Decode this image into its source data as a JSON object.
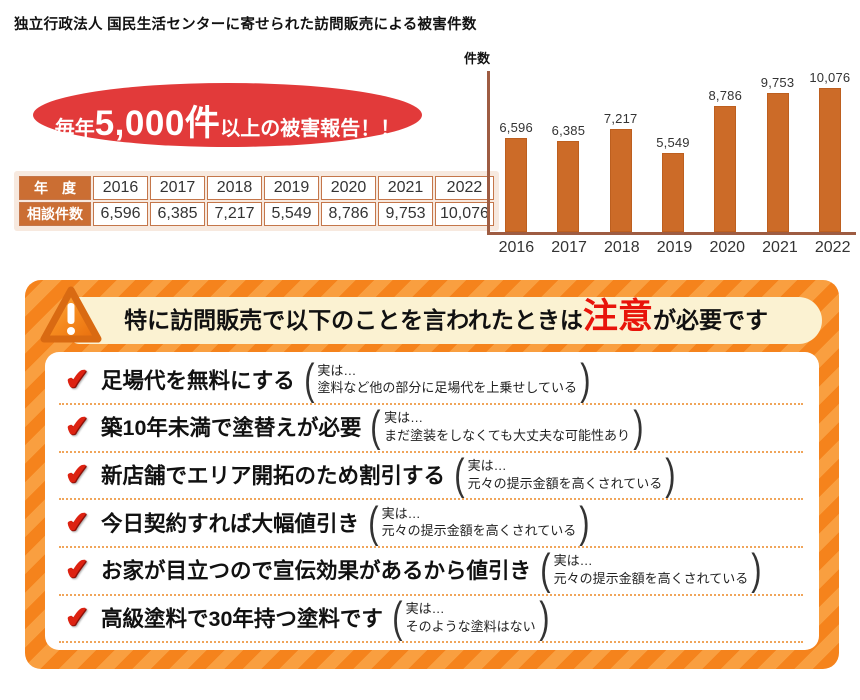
{
  "page": {
    "title": "独立行政法人 国民生活センターに寄せられた訪問販売による被害件数"
  },
  "badge": {
    "prefix": "毎年",
    "big": "5,000件",
    "suffix": "以上の被害報告！！",
    "bg_color": "#e23a3a"
  },
  "stats_table": {
    "row1_header": "年　度",
    "row2_header": "相談件数",
    "years": [
      "2016",
      "2017",
      "2018",
      "2019",
      "2020",
      "2021",
      "2022"
    ],
    "counts": [
      "6,596",
      "6,385",
      "7,217",
      "5,549",
      "8,786",
      "9,753",
      "10,076"
    ]
  },
  "chart_data": {
    "type": "bar",
    "title": "独立行政法人 国民生活センターに寄せられた訪問販売による被害件数",
    "ylabel": "件数",
    "categories": [
      "2016",
      "2017",
      "2018",
      "2019",
      "2020",
      "2021",
      "2022"
    ],
    "values": [
      6596,
      6385,
      7217,
      5549,
      8786,
      9753,
      10076
    ],
    "value_labels": [
      "6,596",
      "6,385",
      "7,217",
      "5,549",
      "8,786",
      "9,753",
      "10,076"
    ],
    "ylim": [
      0,
      10500
    ],
    "grid": false,
    "legend": "none",
    "bar_color": "#cc6b28",
    "axis_color": "#9e5c42"
  },
  "warning": {
    "heading_pre": "特に訪問販売で以下のことを言われたときは",
    "heading_em": "注意",
    "heading_post": "が必要です",
    "em_color": "#e8140a",
    "items": [
      {
        "claim": "足場代を無料にする",
        "truth_intro": "実は…",
        "truth": "塗料など他の部分に足場代を上乗せしている"
      },
      {
        "claim": "築10年未満で塗替えが必要",
        "truth_intro": "実は…",
        "truth": "まだ塗装をしなくても大丈夫な可能性あり"
      },
      {
        "claim": "新店舗でエリア開拓のため割引する",
        "truth_intro": "実は…",
        "truth": "元々の提示金額を高くされている"
      },
      {
        "claim": "今日契約すれば大幅値引き",
        "truth_intro": "実は…",
        "truth": "元々の提示金額を高くされている"
      },
      {
        "claim": "お家が目立つので宣伝効果があるから値引き",
        "truth_intro": "実は…",
        "truth": "元々の提示金額を高くされている"
      },
      {
        "claim": "高級塗料で30年持つ塗料です",
        "truth_intro": "実は…",
        "truth": "そのような塗料はない"
      }
    ]
  }
}
